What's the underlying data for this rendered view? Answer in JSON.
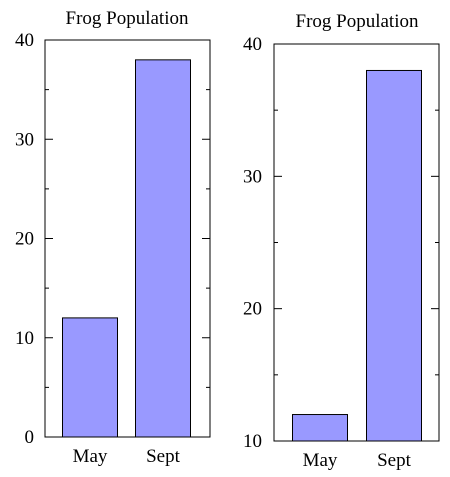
{
  "chart_data": [
    {
      "type": "bar",
      "title": "Frog Population",
      "categories": [
        "May",
        "Sept"
      ],
      "values": [
        12,
        38
      ],
      "ylim": [
        0,
        40
      ],
      "yticks": [
        0,
        10,
        20,
        30,
        40
      ],
      "xlabel": "",
      "ylabel": "",
      "grid": false,
      "bar_color": "#9999ff"
    },
    {
      "type": "bar",
      "title": "Frog Population",
      "categories": [
        "May",
        "Sept"
      ],
      "values": [
        12,
        38
      ],
      "ylim": [
        10,
        40
      ],
      "yticks": [
        10,
        20,
        30,
        40
      ],
      "xlabel": "",
      "ylabel": "",
      "grid": false,
      "bar_color": "#9999ff"
    }
  ]
}
